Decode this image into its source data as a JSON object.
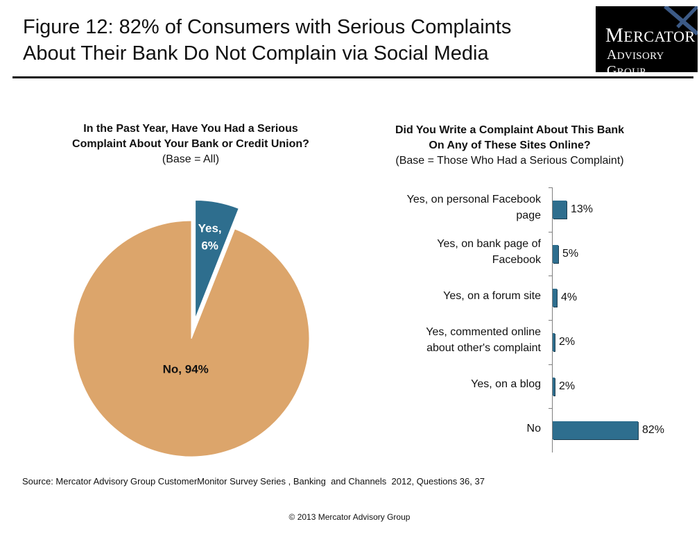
{
  "title_line1": "Figure 12: 82% of Consumers with Serious Complaints",
  "title_line2": "About Their Bank Do Not Complain via Social Media",
  "logo": {
    "line1": "Mercator",
    "line2": "Advisory Group"
  },
  "colors": {
    "pie_no": "#dca56b",
    "pie_yes": "#2e6e8e",
    "bar": "#2e6e8e",
    "axis": "#7f7f7f"
  },
  "chart_data": [
    {
      "type": "pie",
      "title_line1": "In the Past Year, Have You Had a Serious",
      "title_line2": "Complaint About Your Bank or Credit Union?",
      "subtitle": "(Base = All)",
      "slices": [
        {
          "label": "Yes",
          "value": 6,
          "data_label_line1": "Yes,",
          "data_label_line2": "6%",
          "exploded": true
        },
        {
          "label": "No",
          "value": 94,
          "data_label": "No, 94%"
        }
      ]
    },
    {
      "type": "bar",
      "orientation": "horizontal",
      "title_line1": "Did You Write a Complaint About This Bank",
      "title_line2": "On Any of These Sites Online?",
      "subtitle": "(Base = Those Who Had a Serious Complaint)",
      "xlim": [
        0,
        100
      ],
      "categories": [
        {
          "line1": "Yes, on personal Facebook",
          "line2": "page"
        },
        {
          "line1": "Yes, on bank page of",
          "line2": "Facebook"
        },
        {
          "line1": "Yes, on a forum site",
          "line2": ""
        },
        {
          "line1": "Yes, commented online",
          "line2": "about other's complaint"
        },
        {
          "line1": "Yes, on a blog",
          "line2": ""
        },
        {
          "line1": "No",
          "line2": ""
        }
      ],
      "values": [
        13,
        5,
        4,
        2,
        2,
        82
      ],
      "data_labels": [
        "13%",
        "5%",
        "4%",
        "2%",
        "2%",
        "82%"
      ]
    }
  ],
  "source_note": "Source: Mercator Advisory Group CustomerMonitor Survey Series , Banking  and Channels  2012, Questions 36, 37",
  "copyright": "© 2013 Mercator Advisory Group"
}
